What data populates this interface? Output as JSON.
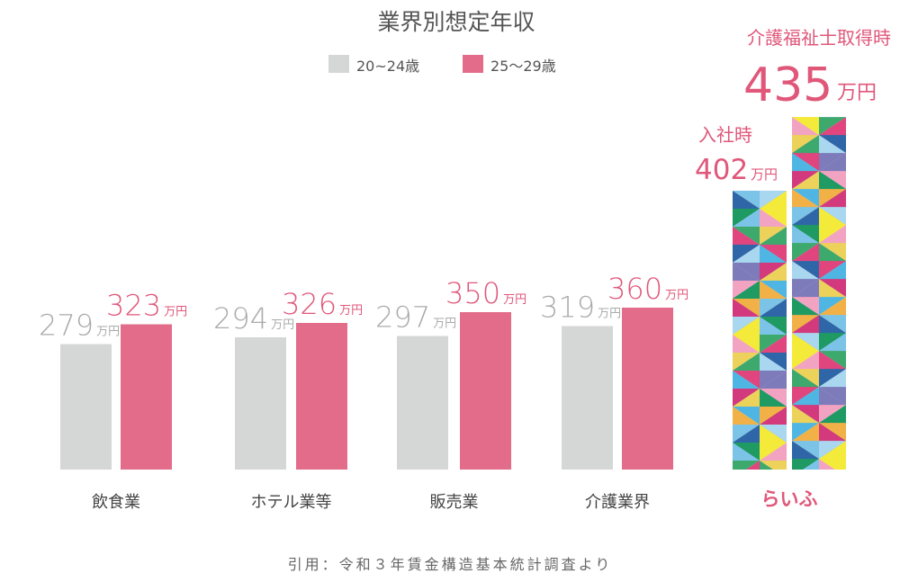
{
  "chart_data": {
    "type": "bar",
    "title": "業界別想定年収",
    "unit": "万円",
    "categories": [
      "飲食業",
      "ホテル業等",
      "販売業",
      "介護業界",
      "らいふ"
    ],
    "series": [
      {
        "name": "20~24歳",
        "color": "#d5d7d6",
        "label_color": "#a9abaa",
        "values": [
          279,
          294,
          297,
          319,
          402
        ]
      },
      {
        "name": "25～29歳",
        "color": "#e26c89",
        "label_color": "#e0577a",
        "values": [
          323,
          326,
          350,
          360,
          435
        ]
      }
    ],
    "raifu": {
      "label": "らいふ",
      "note_left": "入社時",
      "note_right": "介護福祉士取得時",
      "palette": [
        "#f3ea3a",
        "#ecd15a",
        "#e1457e",
        "#d23a7d",
        "#4fb6e3",
        "#7cc3e8",
        "#1f9a63",
        "#3ea96d",
        "#2f66a8",
        "#7d7bb9",
        "#f3a3c2",
        "#f1b146",
        "#a8d7ef"
      ]
    },
    "source": "引用：令和３年賃金構造基本統計調査より"
  }
}
